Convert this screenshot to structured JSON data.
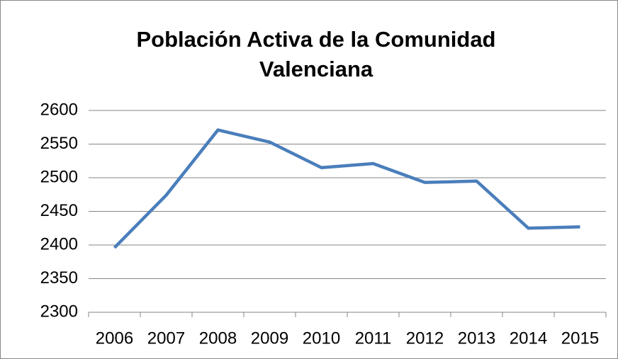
{
  "chart_data": {
    "type": "line",
    "title": "Población Activa de la Comunidad Valenciana",
    "categories": [
      "2006",
      "2007",
      "2008",
      "2009",
      "2010",
      "2011",
      "2012",
      "2013",
      "2014",
      "2015"
    ],
    "series": [
      {
        "name": "Población Activa",
        "color": "#4a7ebb",
        "values": [
          2396,
          2474,
          2571,
          2553,
          2515,
          2521,
          2493,
          2495,
          2425,
          2427
        ]
      }
    ],
    "ylim": [
      2300,
      2600
    ],
    "yticks": [
      2300,
      2350,
      2400,
      2450,
      2500,
      2550,
      2600
    ],
    "grid": true
  }
}
